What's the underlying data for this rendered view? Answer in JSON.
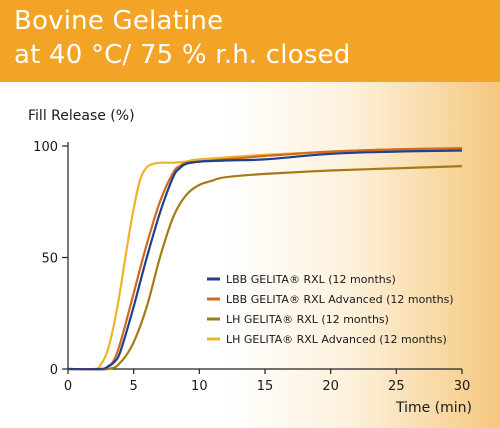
{
  "header": {
    "title_line1": "Bovine Gelatine",
    "title_line2": "at 40 °C/ 75 % r.h. closed"
  },
  "colors": {
    "banner": "#f3a325",
    "lbb_rxl": "#1f3f8f",
    "lbb_rxl_adv": "#d2691e",
    "lh_rxl": "#a57a14",
    "lh_rxl_adv": "#efb22b"
  },
  "chart_data": {
    "type": "line",
    "ylabel": "Fill Release (%)",
    "xlabel": "Time (min)",
    "xlim": [
      0,
      30
    ],
    "ylim": [
      0,
      100
    ],
    "xticks": [
      0,
      5,
      10,
      15,
      20,
      25,
      30
    ],
    "yticks": [
      0,
      50,
      100
    ],
    "grid": false,
    "legend_position": "lower-right",
    "series": [
      {
        "name": "LBB GELITA® RXL (12 months)",
        "color": "#1f3f8f",
        "x": [
          0,
          2.5,
          3.0,
          3.5,
          4.0,
          5.0,
          6.0,
          7.0,
          8.0,
          8.5,
          9.0,
          10.0,
          12.0,
          15.0,
          20.0,
          25.0,
          30.0
        ],
        "y": [
          0,
          0,
          1,
          3,
          8,
          28,
          50,
          70,
          86,
          90,
          92,
          93,
          93.5,
          94,
          96.5,
          97.5,
          98
        ]
      },
      {
        "name": "LBB GELITA® RXL Advanced (12 months)",
        "color": "#d2691e",
        "x": [
          0,
          2.5,
          3.0,
          3.5,
          4.0,
          5.0,
          6.0,
          7.0,
          8.0,
          8.5,
          9.0,
          10.0,
          12.0,
          15.0,
          20.0,
          25.0,
          30.0
        ],
        "y": [
          0,
          0,
          1,
          4,
          12,
          34,
          56,
          75,
          88,
          91,
          92.5,
          93,
          94,
          95.5,
          97.5,
          98.5,
          99
        ]
      },
      {
        "name": "LH GELITA® RXL (12 months)",
        "color": "#a57a14",
        "x": [
          0,
          3.0,
          4.0,
          5.0,
          6.0,
          7.0,
          8.0,
          9.0,
          10.0,
          11.0,
          12.0,
          15.0,
          20.0,
          25.0,
          30.0
        ],
        "y": [
          0,
          0,
          3,
          12,
          28,
          50,
          68,
          78,
          82.5,
          84.5,
          86,
          87.5,
          89,
          90,
          91
        ]
      },
      {
        "name": "LH GELITA® RXL Advanced (12 months)",
        "color": "#efb22b",
        "x": [
          0,
          2.0,
          2.5,
          3.0,
          3.5,
          4.0,
          4.5,
          5.0,
          5.5,
          6.0,
          6.5,
          7.0,
          7.5,
          8.0,
          9.0,
          10.0,
          15.0,
          20.0,
          25.0,
          30.0
        ],
        "y": [
          0,
          0,
          2,
          8,
          20,
          36,
          55,
          72,
          85,
          90.5,
          92,
          92.5,
          92.5,
          92.5,
          93,
          94,
          96,
          97.5,
          98.5,
          99
        ]
      }
    ]
  }
}
